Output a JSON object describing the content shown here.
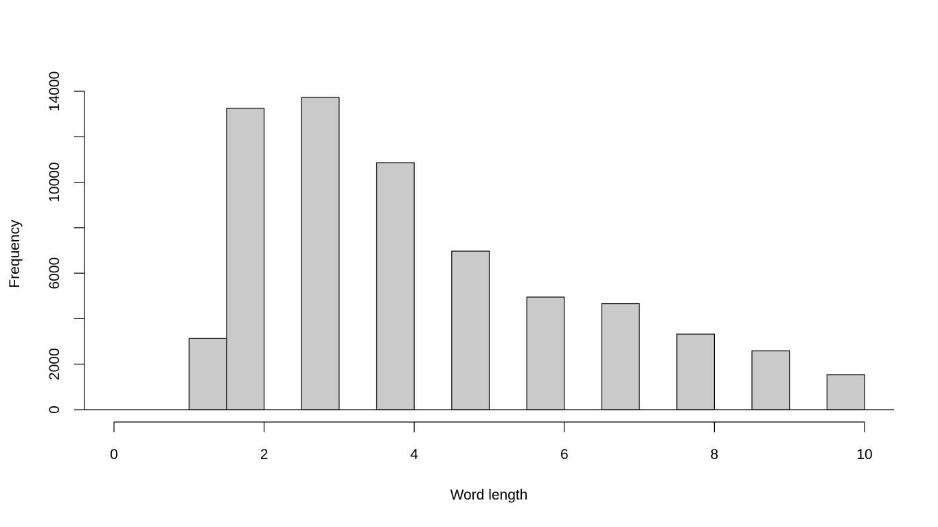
{
  "chart_data": {
    "type": "bar",
    "title": "",
    "xlabel": "Word length",
    "ylabel": "Frequency",
    "bar_fill": "#cacaca",
    "bar_edge": "#000000",
    "bars": [
      {
        "x0": 1.0,
        "x1": 1.5,
        "value": 3130
      },
      {
        "x0": 1.5,
        "x1": 2.0,
        "value": 13250
      },
      {
        "x0": 2.5,
        "x1": 3.0,
        "value": 13730
      },
      {
        "x0": 3.5,
        "x1": 4.0,
        "value": 10860
      },
      {
        "x0": 4.5,
        "x1": 5.0,
        "value": 6970
      },
      {
        "x0": 5.5,
        "x1": 6.0,
        "value": 4950
      },
      {
        "x0": 6.5,
        "x1": 7.0,
        "value": 4660
      },
      {
        "x0": 7.5,
        "x1": 8.0,
        "value": 3320
      },
      {
        "x0": 8.5,
        "x1": 9.0,
        "value": 2590
      },
      {
        "x0": 9.5,
        "x1": 10.0,
        "value": 1540
      }
    ],
    "xlim": [
      0,
      10
    ],
    "ylim": [
      0,
      14000
    ],
    "x_ticks": [
      0,
      2,
      4,
      6,
      8,
      10
    ],
    "x_tick_labels": [
      "0",
      "2",
      "4",
      "6",
      "8",
      "10"
    ],
    "y_ticks": [
      0,
      2000,
      4000,
      6000,
      8000,
      10000,
      12000,
      14000
    ],
    "y_tick_labels": [
      "0",
      "2000",
      "6000",
      "10000",
      "14000"
    ],
    "y_labeled_ticks": [
      0,
      2000,
      6000,
      10000,
      14000
    ],
    "grid": false,
    "legend": "none"
  }
}
